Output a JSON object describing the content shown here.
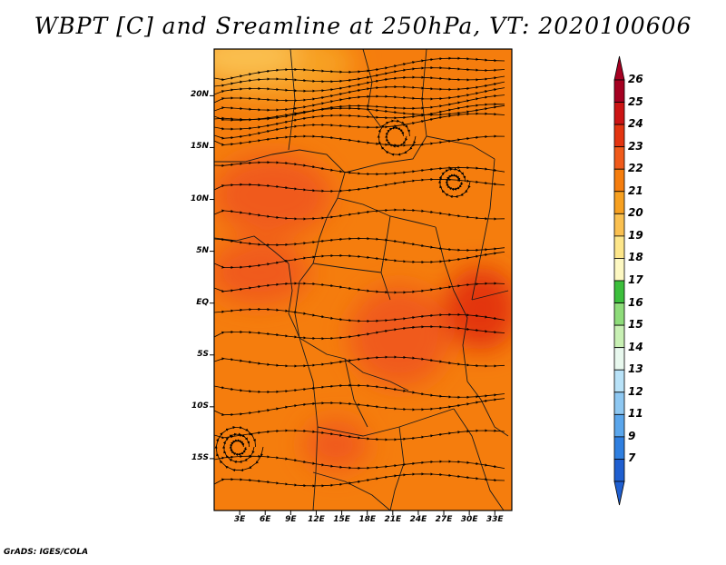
{
  "title": "WBPT [C] and Sreamline at 250hPa, VT: 2020100606",
  "footer": "GrADS: IGES/COLA",
  "map": {
    "lat_labels": [
      "20N",
      "15N",
      "10N",
      "5N",
      "EQ",
      "5S",
      "10S",
      "15S"
    ],
    "lat_values": [
      20,
      15,
      10,
      5,
      0,
      -5,
      -10,
      -15
    ],
    "lon_labels": [
      "3E",
      "6E",
      "9E",
      "12E",
      "15E",
      "18E",
      "21E",
      "24E",
      "27E",
      "30E",
      "33E"
    ],
    "lon_values": [
      3,
      6,
      9,
      12,
      15,
      18,
      21,
      24,
      27,
      30,
      33
    ],
    "lat_range": [
      -20,
      24.5
    ],
    "lon_range": [
      0,
      35
    ]
  },
  "colorbar": {
    "labels": [
      "26",
      "25",
      "24",
      "23",
      "22",
      "21",
      "20",
      "19",
      "18",
      "17",
      "16",
      "15",
      "14",
      "13",
      "12",
      "11",
      "9",
      "7"
    ],
    "colors": [
      "#a50021",
      "#cc1414",
      "#e33410",
      "#f05a1a",
      "#f57d0d",
      "#f7a020",
      "#fac050",
      "#fde68a",
      "#fdf8c2",
      "#3cbf3c",
      "#8edc7a",
      "#c8f0b4",
      "#e8f8ee",
      "#b8e2f8",
      "#8ec8f2",
      "#5aa6ec",
      "#2f7fe0",
      "#1f5fd0"
    ],
    "top_color": "#a50021",
    "bottom_color": "#1f5fd0"
  }
}
